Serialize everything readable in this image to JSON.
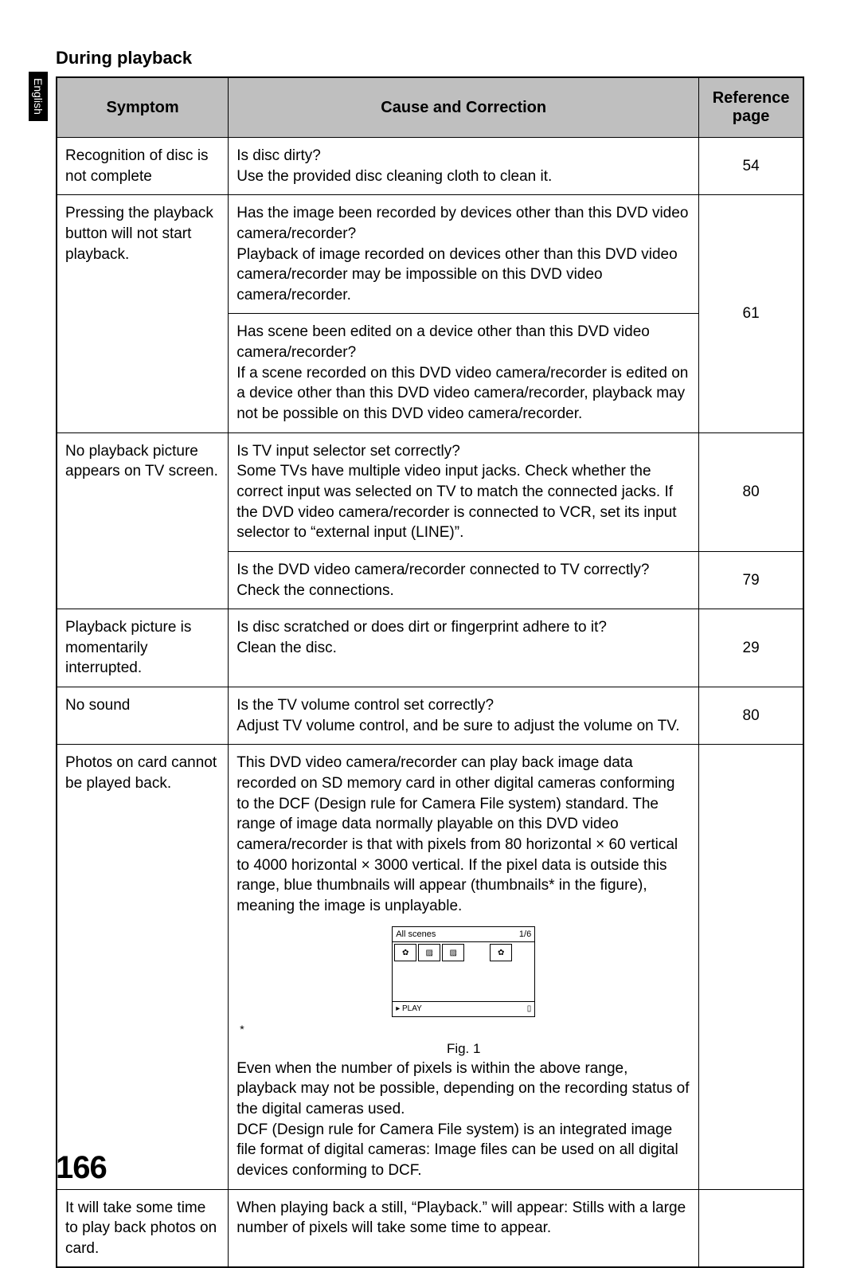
{
  "language_tab": "English",
  "section_title": "During playback",
  "headers": {
    "symptom": "Symptom",
    "cause": "Cause and Correction",
    "reference": "Reference page"
  },
  "rows": {
    "r1": {
      "symptom": "Recognition of disc is not complete",
      "cause": "Is disc dirty?\nUse the provided disc cleaning cloth to clean it.",
      "ref": "54"
    },
    "r2": {
      "symptom": "Pressing the playback button will not start playback.",
      "cause_a": "Has the image been recorded by devices other than this DVD video camera/recorder?\nPlayback of image recorded on devices other than this DVD video camera/recorder may be impossible on this DVD video camera/recorder.",
      "cause_b": "Has scene been edited on a device other than this DVD video camera/recorder?\nIf a scene recorded on this DVD video camera/recorder is edited on a device other than this DVD video camera/recorder, playback may not be possible on this DVD video camera/recorder.",
      "ref": "61"
    },
    "r3": {
      "symptom": "No playback picture appears on TV screen.",
      "cause_a": "Is TV input selector set correctly?\nSome TVs have multiple video input jacks. Check whether the correct input was selected on TV to match the connected jacks. If the DVD video camera/recorder is connected to VCR, set its input selector to “external input (LINE)”.",
      "ref_a": "80",
      "cause_b": "Is the DVD video camera/recorder connected to TV correctly?\nCheck the connections.",
      "ref_b": "79"
    },
    "r4": {
      "symptom": "Playback picture is momentarily interrupted.",
      "cause": "Is disc scratched or does dirt or fingerprint adhere to it?\nClean the disc.",
      "ref": "29"
    },
    "r5": {
      "symptom": "No sound",
      "cause": "Is the TV volume control set correctly?\nAdjust TV volume control, and be sure to adjust the volume on TV.",
      "ref": "80"
    },
    "r6": {
      "symptom": "Photos on card cannot be played back.",
      "cause_a": "This DVD video camera/recorder can play back image data recorded on SD memory card in other digital cameras conforming to the DCF (Design rule for Camera File system) standard. The range of image data normally playable on this DVD video camera/recorder is that with pixels from 80 horizontal × 60 vertical to 4000 horizontal × 3000 vertical. If the pixel data is outside this range, blue thumbnails will appear (thumbnails* in the figure), meaning the image is unplayable.",
      "fig_top_left": "All scenes",
      "fig_top_right": "1/6",
      "fig_play": "PLAY",
      "fig_caption": "Fig. 1",
      "cause_b": "Even when the number of pixels is within the above range, playback may not be possible, depending on the recording status of the digital cameras used.\nDCF (Design rule for Camera File system) is an integrated image file format of digital cameras: Image files can be used on all digital devices conforming to DCF.",
      "ref": ""
    },
    "r7": {
      "symptom": "It will take some time to play back photos on card.",
      "cause": "When playing back a still, “Playback.” will appear: Stills with a large number of pixels will take some time to appear.",
      "ref": ""
    }
  },
  "page_number": "166"
}
